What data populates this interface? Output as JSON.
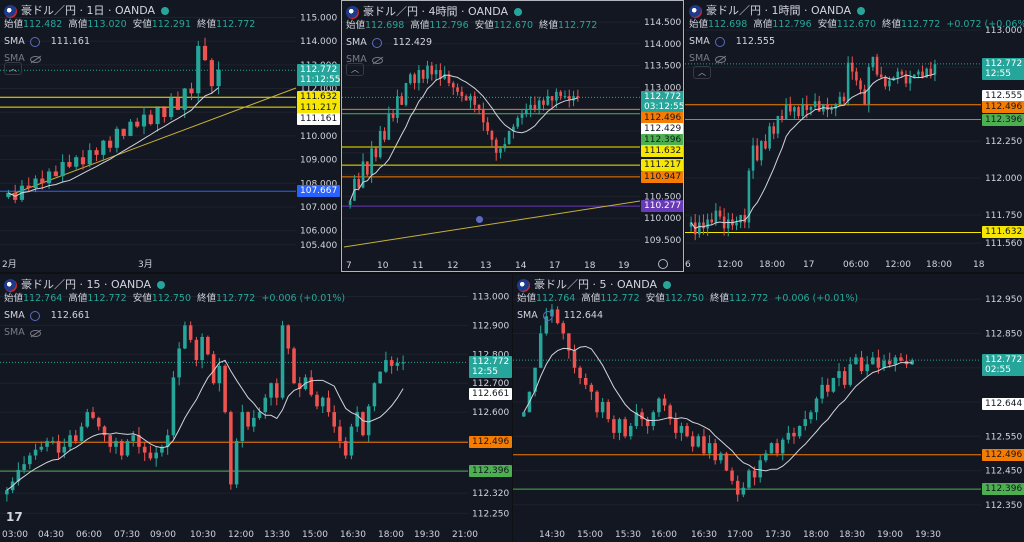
{
  "colors": {
    "up": "#26a69a",
    "down": "#ef5350",
    "sma": "#d1d4dc",
    "bg": "#131722"
  },
  "panes": [
    {
      "id": "daily",
      "title": "豪ドル／円 · 1日 · OANDA",
      "ohlc": [
        [
          "始値",
          "112.482"
        ],
        [
          "高値",
          "113.020"
        ],
        [
          "安値",
          "112.291"
        ],
        [
          "終値",
          "112.772"
        ]
      ],
      "change": "",
      "sma_value": "111.161",
      "sma2_label": "SMA",
      "sma_label": "SMA",
      "price_ticks": [
        "115.000",
        "114.000",
        "113.000",
        "112.000",
        "111.000",
        "110.000",
        "109.000",
        "108.000",
        "107.000",
        "106.000",
        "105.400"
      ],
      "time_ticks": [
        "2月",
        "3月"
      ],
      "tags": [
        {
          "text": "112.772",
          "sub": "11:12:55",
          "style": "green"
        },
        {
          "text": "111.632",
          "style": "yellow"
        },
        {
          "text": "111.217",
          "style": "yellow"
        },
        {
          "text": "111.161",
          "style": "white"
        },
        {
          "text": "107.667",
          "style": "blue"
        }
      ]
    },
    {
      "id": "h4",
      "title": "豪ドル／円 · 4時間 · OANDA",
      "ohlc": [
        [
          "始値",
          "112.698"
        ],
        [
          "高値",
          "112.796"
        ],
        [
          "安値",
          "112.670"
        ],
        [
          "終値",
          "112.772"
        ]
      ],
      "change": "",
      "sma_value": "112.429",
      "sma_label": "SMA",
      "sma2_label": "SMA",
      "price_ticks": [
        "114.500",
        "114.000",
        "113.500",
        "113.000",
        "112.500",
        "112.000",
        "111.500",
        "111.000",
        "110.500",
        "110.000",
        "109.500"
      ],
      "time_ticks": [
        "7",
        "10",
        "11",
        "12",
        "13",
        "14",
        "17",
        "18",
        "19"
      ],
      "tags": [
        {
          "text": "112.772",
          "sub": "03:12:55",
          "style": "green"
        },
        {
          "text": "112.496",
          "style": "orange"
        },
        {
          "text": "112.429",
          "style": "white"
        },
        {
          "text": "112.396",
          "style": "dkgreen"
        },
        {
          "text": "111.632",
          "style": "yellow"
        },
        {
          "text": "111.217",
          "style": "yellow"
        },
        {
          "text": "110.947",
          "style": "orange"
        },
        {
          "text": "110.277",
          "style": "purple"
        }
      ]
    },
    {
      "id": "h1",
      "title": "豪ドル／円 · 1時間 · OANDA",
      "ohlc": [
        [
          "始値",
          "112.698"
        ],
        [
          "高値",
          "112.796"
        ],
        [
          "安値",
          "112.670"
        ],
        [
          "終値",
          "112.772"
        ]
      ],
      "change": "+0.072 (+0.06%)",
      "sma_value": "112.555",
      "sma_label": "SMA",
      "sma2_label": "SMA",
      "price_ticks": [
        "113.000",
        "112.750",
        "112.500",
        "112.250",
        "112.000",
        "111.750",
        "111.560"
      ],
      "time_ticks": [
        "6",
        "12:00",
        "18:00",
        "17",
        "06:00",
        "12:00",
        "18:00",
        "18"
      ],
      "tags": [
        {
          "text": "112.772",
          "sub": "12:55",
          "style": "green"
        },
        {
          "text": "112.555",
          "style": "white"
        },
        {
          "text": "112.496",
          "style": "orange"
        },
        {
          "text": "112.396",
          "style": "dkgreen"
        },
        {
          "text": "111.632",
          "style": "yellow"
        }
      ]
    },
    {
      "id": "m15",
      "title": "豪ドル／円 · 15 · OANDA",
      "ohlc": [
        [
          "始値",
          "112.764"
        ],
        [
          "高値",
          "112.772"
        ],
        [
          "安値",
          "112.750"
        ],
        [
          "終値",
          "112.772"
        ]
      ],
      "change": "+0.006 (+0.01%)",
      "sma_value": "112.661",
      "sma_label": "SMA",
      "sma2_label": "SMA",
      "price_ticks": [
        "113.000",
        "112.900",
        "112.800",
        "112.700",
        "112.600",
        "112.500",
        "112.400",
        "112.320",
        "112.250"
      ],
      "time_ticks": [
        "03:00",
        "04:30",
        "06:00",
        "07:30",
        "09:00",
        "10:30",
        "12:00",
        "13:30",
        "15:00",
        "16:30",
        "18:00",
        "19:30",
        "21:00"
      ],
      "tags": [
        {
          "text": "112.772",
          "sub": "12:55",
          "style": "green"
        },
        {
          "text": "112.661",
          "style": "white"
        },
        {
          "text": "112.496",
          "style": "orange"
        },
        {
          "text": "112.396",
          "style": "dkgreen"
        }
      ]
    },
    {
      "id": "m5",
      "title": "豪ドル／円 · 5 · OANDA",
      "ohlc": [
        [
          "始値",
          "112.764"
        ],
        [
          "高値",
          "112.772"
        ],
        [
          "安値",
          "112.750"
        ],
        [
          "終値",
          "112.772"
        ]
      ],
      "change": "+0.006 (+0.01%)",
      "sma_value": "112.644",
      "sma_label": "SMA",
      "sma2_label": "SMA",
      "price_ticks": [
        "112.950",
        "112.850",
        "112.750",
        "112.650",
        "112.550",
        "112.450",
        "112.350"
      ],
      "time_ticks": [
        "14:30",
        "15:00",
        "15:30",
        "16:00",
        "16:30",
        "17:00",
        "17:30",
        "18:00",
        "18:30",
        "19:00",
        "19:30"
      ],
      "tags": [
        {
          "text": "112.772",
          "sub": "02:55",
          "style": "green"
        },
        {
          "text": "112.644",
          "style": "white"
        },
        {
          "text": "112.496",
          "style": "orange"
        },
        {
          "text": "112.396",
          "style": "dkgreen"
        }
      ]
    }
  ]
}
